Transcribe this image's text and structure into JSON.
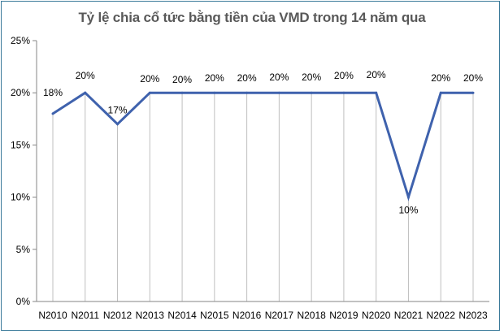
{
  "chart_data": {
    "type": "line",
    "title": "Tỷ lệ chia cổ tức bằng tiền của VMD trong 14 năm qua",
    "xlabel": "",
    "ylabel": "",
    "categories": [
      "N2010",
      "N2011",
      "N2012",
      "N2013",
      "N2014",
      "N2015",
      "N2016",
      "N2017",
      "N2018",
      "N2019",
      "N2020",
      "N2021",
      "N2022",
      "N2023"
    ],
    "series": [
      {
        "name": "Tỷ lệ chia cổ tức bằng tiền",
        "values": [
          18,
          20,
          17,
          20,
          20,
          20,
          20,
          20,
          20,
          20,
          20,
          10,
          20,
          20
        ],
        "data_labels": [
          "18%",
          "20%",
          "17%",
          "20%",
          "20%",
          "20%",
          "20%",
          "20%",
          "20%",
          "20%",
          "20%",
          "10%",
          "20%",
          "20%"
        ],
        "color": "#3f62ad"
      }
    ],
    "ylim": [
      0,
      25
    ],
    "yticks": [
      0,
      5,
      10,
      15,
      20,
      25
    ],
    "ytick_labels": [
      "0%",
      "5%",
      "10%",
      "15%",
      "20%",
      "25%"
    ],
    "grid": false,
    "drop_lines": true,
    "legend": "none"
  },
  "colors": {
    "line": "#3f62ad",
    "drop_line": "#bfbfbf",
    "axis": "#868686",
    "border": "#3a7a9a",
    "title": "#595959"
  }
}
